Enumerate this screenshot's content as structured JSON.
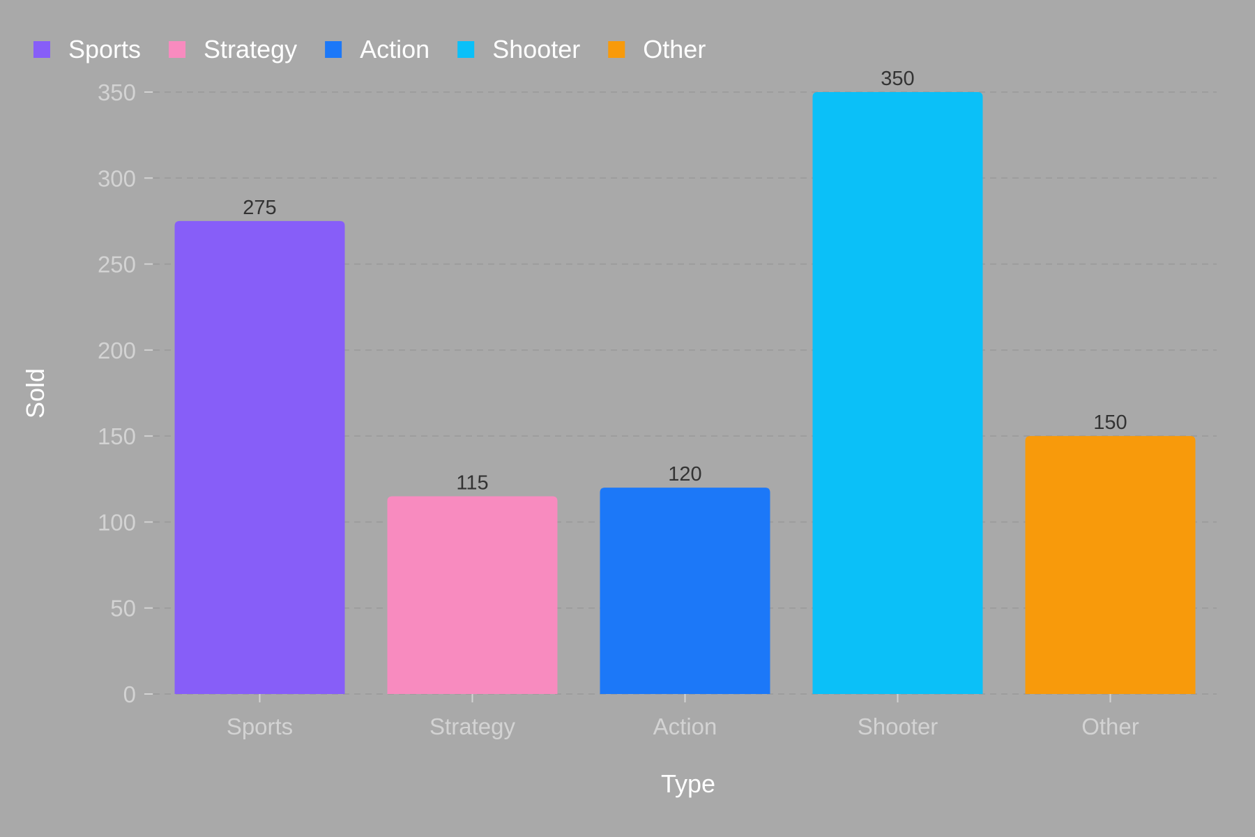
{
  "chart_data": {
    "type": "bar",
    "categories": [
      "Sports",
      "Strategy",
      "Action",
      "Shooter",
      "Other"
    ],
    "values": [
      275,
      115,
      120,
      350,
      150
    ],
    "colors": [
      "#875ef8",
      "#f88bbf",
      "#1c78f8",
      "#0bc0f8",
      "#f89a0b"
    ],
    "title": "",
    "xlabel": "Type",
    "ylabel": "Sold",
    "ylim": [
      0,
      350
    ],
    "yticks": [
      0,
      50,
      100,
      150,
      200,
      250,
      300,
      350
    ],
    "grid": "horizontal dashed",
    "legend": {
      "position": "top-left",
      "entries": [
        "Sports",
        "Strategy",
        "Action",
        "Shooter",
        "Other"
      ]
    },
    "data_labels": [
      "275",
      "115",
      "120",
      "350",
      "150"
    ]
  }
}
